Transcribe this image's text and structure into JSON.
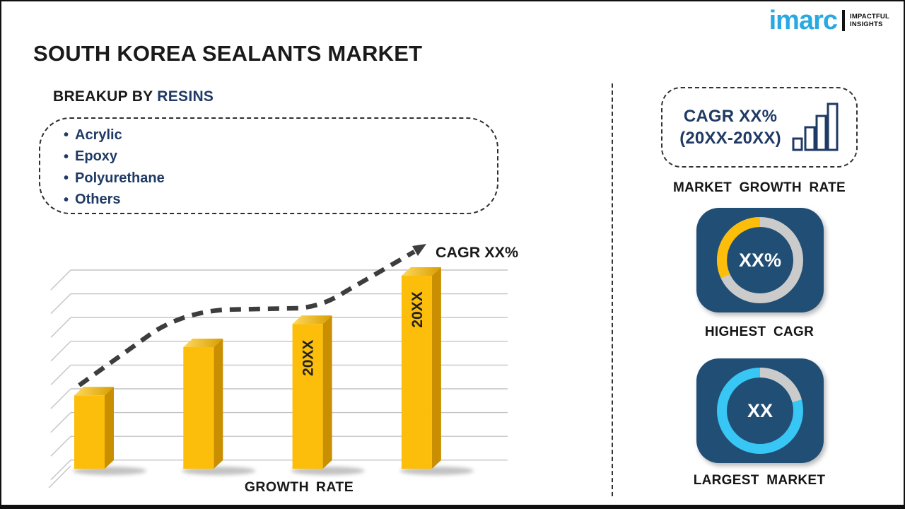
{
  "logo": {
    "brand": "imarc",
    "tagline_line1": "IMPACTFUL",
    "tagline_line2": "INSIGHTS"
  },
  "title": "SOUTH KOREA SEALANTS MARKET",
  "breakup": {
    "heading_prefix": "BREAKUP BY ",
    "heading_highlight": "RESINS",
    "bullet": "•",
    "items": [
      "Acrylic",
      "Epoxy",
      "Polyurethane",
      "Others"
    ]
  },
  "chart_data": {
    "type": "bar",
    "title": "",
    "xlabel": "GROWTH RATE",
    "ylabel": "",
    "categories": [
      "",
      "",
      "20XX",
      "20XX"
    ],
    "bar_labels": [
      "",
      "",
      "20XX",
      "20XX"
    ],
    "relative_heights": [
      0.38,
      0.63,
      0.75,
      1.0
    ],
    "values_note": "placeholder chart - no numeric axis values shown",
    "trend_label": "CAGR XX%",
    "gridlines": 9,
    "grid_on": true,
    "legend": "none",
    "bar_color": "#FCBE0A",
    "trend_style": "dashed-arrow"
  },
  "right_panel": {
    "growth_box": {
      "line1": "CAGR XX%",
      "line2": "(20XX-20XX)"
    },
    "growth_caption": "MARKET GROWTH RATE",
    "highest_cagr": {
      "value": "XX%",
      "caption": "HIGHEST CAGR",
      "arc_sweep_deg": 115
    },
    "largest_market": {
      "value": "XX",
      "caption": "LARGEST MARKET",
      "gray_sweep_deg": 75
    }
  },
  "colors": {
    "navy": "#1F3A64",
    "tile_blue": "#214E74",
    "bar_yellow": "#FCBE0A",
    "cyan": "#38C6F4",
    "ring_gray": "#CBCBCB",
    "logo_cyan": "#29A9E1"
  }
}
